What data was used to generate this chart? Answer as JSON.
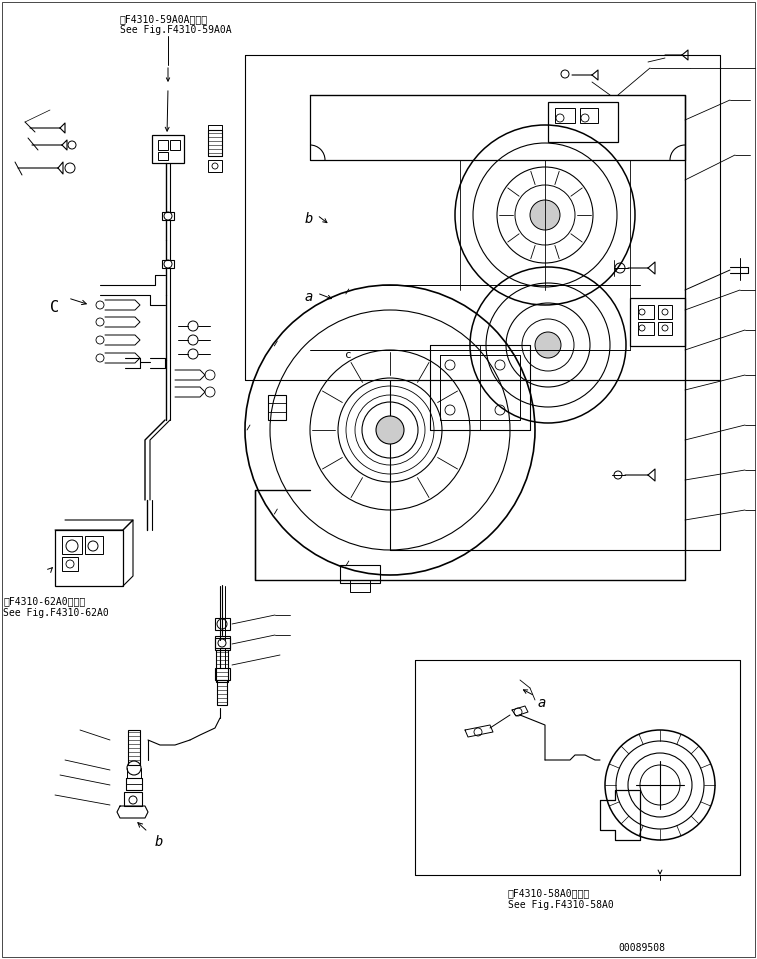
{
  "bg_color": "#ffffff",
  "line_color": "#000000",
  "figsize": [
    7.57,
    9.59
  ],
  "dpi": 100,
  "text_top_ref1": "第F4310-59A0A図参照",
  "text_top_ref2": "See Fig.F4310-59A0A",
  "text_left_ref1": "第F4310-62A0図参照",
  "text_left_ref2": "See Fig.F4310-62A0",
  "text_right_ref1": "第F4310-58A0図参照",
  "text_right_ref2": "See Fig.F4310-58A0",
  "text_serial": "00089508",
  "label_a": "a",
  "label_b": "b",
  "label_b2": "b",
  "label_C": "C",
  "label_c": "c",
  "label_a2": "a"
}
